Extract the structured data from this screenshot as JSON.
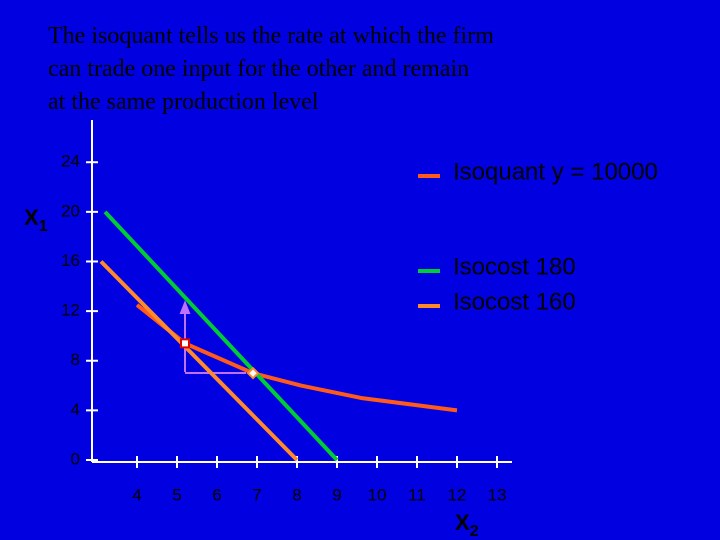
{
  "chart_data": {
    "type": "line",
    "title_lines": [
      "The isoquant tells us the rate at which the firm",
      "can trade one input for the other and remain",
      "at the same production level"
    ],
    "ylabel": "X",
    "ylabel_sub": "1",
    "xlabel": "X",
    "xlabel_sub": "2",
    "xlim": [
      3,
      13.5
    ],
    "ylim": [
      0,
      27
    ],
    "xticks": [
      4,
      5,
      6,
      7,
      8,
      9,
      10,
      11,
      12,
      13
    ],
    "yticks": [
      0,
      4,
      8,
      12,
      16,
      20,
      24
    ],
    "series": [
      {
        "name": "Isoquant y = 10000",
        "color": "#ff5a1a",
        "x": [
          4,
          5.2,
          6.9,
          8.1,
          9.6,
          12
        ],
        "values": [
          12.5,
          9.4,
          7,
          6,
          5,
          4
        ]
      },
      {
        "name": "Isocost 180",
        "color": "#00cc33",
        "x": [
          3.2,
          9
        ],
        "values": [
          20,
          0
        ]
      },
      {
        "name": "Isocost 160",
        "color": "#ff8a2a",
        "x": [
          3.1,
          8
        ],
        "values": [
          16,
          0
        ]
      }
    ],
    "points": {
      "x": [
        5.2,
        6.9
      ],
      "y": [
        9.4,
        7
      ]
    }
  }
}
